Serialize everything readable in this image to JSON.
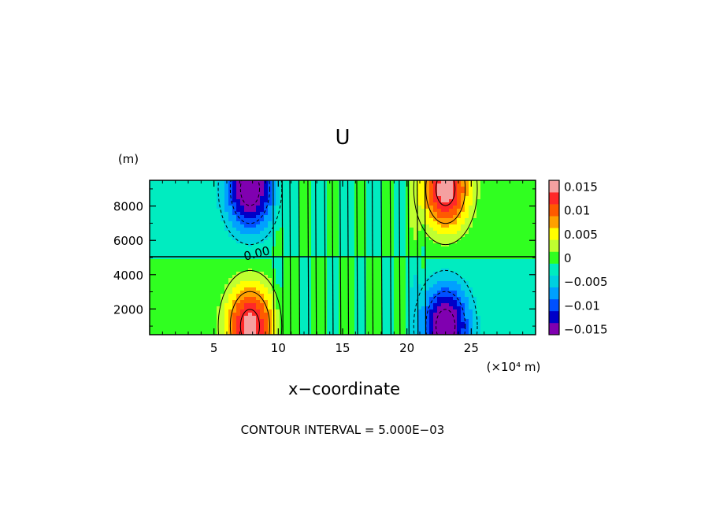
{
  "chart_data": {
    "type": "heatmap",
    "title": "U",
    "xlabel": "x−coordinate",
    "x_unit": "(×10⁴ m)",
    "y_unit": "(m)",
    "footer": "CONTOUR INTERVAL = 5.000E−03",
    "xlim": [
      0,
      30
    ],
    "ylim": [
      500,
      9500
    ],
    "x_ticks": [
      5,
      10,
      15,
      20,
      25
    ],
    "x_tick_labels": [
      "5",
      "10",
      "15",
      "20",
      "25"
    ],
    "y_ticks": [
      2000,
      4000,
      6000,
      8000
    ],
    "y_tick_labels": [
      "2000",
      "4000",
      "6000",
      "8000"
    ],
    "contour_interval": 0.005,
    "contour_label": "0.00",
    "colorbar": {
      "levels": [
        -0.015,
        -0.0125,
        -0.01,
        -0.0075,
        -0.005,
        -0.0025,
        0,
        0.0025,
        0.005,
        0.0075,
        0.01,
        0.0125,
        0.015
      ],
      "colors": [
        "#8000b0",
        "#0000c8",
        "#0050ff",
        "#00a0ff",
        "#00d0e0",
        "#00ecc0",
        "#30ff20",
        "#c0ff30",
        "#ffff00",
        "#ffa000",
        "#ff5a00",
        "#ff2828",
        "#f5a0a0"
      ],
      "tick_values": [
        0.015,
        0.01,
        0.005,
        0,
        -0.005,
        -0.01,
        -0.015
      ],
      "tick_labels": [
        "0.015",
        "0.01",
        "0.005",
        "0",
        "−0.005",
        "−0.01",
        "−0.015"
      ]
    },
    "field_extrema": [
      {
        "x": 7.8,
        "y": 9000,
        "sign": -1,
        "value": -0.013
      },
      {
        "x": 23.0,
        "y": 9000,
        "sign": 1,
        "value": 0.013
      },
      {
        "x": 7.8,
        "y": 1000,
        "sign": 1,
        "value": 0.013
      },
      {
        "x": 23.0,
        "y": 1000,
        "sign": -1,
        "value": -0.013
      }
    ]
  }
}
